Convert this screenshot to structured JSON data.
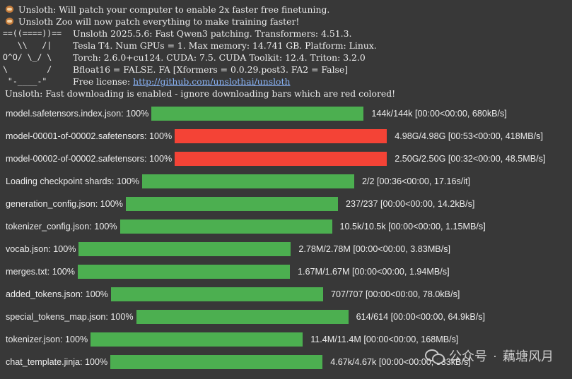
{
  "header": {
    "line1": "Unsloth: Will patch your computer to enable 2x faster free finetuning.",
    "line2": "Unsloth Zoo will now patch everything to make training faster!",
    "info1": "Unsloth 2025.5.6: Fast Qwen3 patching. Transformers: 4.51.3.",
    "info2": "Tesla T4. Num GPUs = 1. Max memory: 14.741 GB. Platform: Linux.",
    "info3": "Torch: 2.6.0+cu124. CUDA: 7.5. CUDA Toolkit: 12.4. Triton: 3.2.0",
    "info4": "Bfloat16 = FALSE. FA [Xformers = 0.0.29.post3. FA2 = False]",
    "license_label": "Free license: ",
    "license_url": "http://github.com/unslothai/unsloth",
    "fast_download": "Unsloth: Fast downloading is enabled - ignore downloading bars which are red colored!"
  },
  "ascii_art": {
    "row1": "==((====))==",
    "row2": "   \\\\   /|",
    "row3": "O^O/ \\_/ \\",
    "row4": "\\        /",
    "row5": " \"-____-\""
  },
  "colors": {
    "green": "#4caf50",
    "red": "#f44336",
    "track": "#555555"
  },
  "progress_bars": [
    {
      "label": "model.safetensors.index.json: 100%",
      "stats": "144k/144k  [00:00<00:00,  680kB/s]",
      "status": "green",
      "progress": 1.0
    },
    {
      "label": "model-00001-of-00002.safetensors: 100%",
      "stats": "4.98G/4.98G  [00:53<00:00,  418MB/s]",
      "status": "red",
      "progress": 1.0
    },
    {
      "label": "model-00002-of-00002.safetensors: 100%",
      "stats": "2.50G/2.50G  [00:32<00:00,  48.5MB/s]",
      "status": "red",
      "progress": 1.0
    },
    {
      "label": "Loading  checkpoint  shards: 100%",
      "stats": "2/2  [00:36<00:00,  17.16s/it]",
      "status": "green",
      "progress": 1.0
    },
    {
      "label": "generation_config.json: 100%",
      "stats": "237/237  [00:00<00:00,  14.2kB/s]",
      "status": "green",
      "progress": 1.0
    },
    {
      "label": "tokenizer_config.json: 100%",
      "stats": "10.5k/10.5k  [00:00<00:00,  1.15MB/s]",
      "status": "green",
      "progress": 1.0
    },
    {
      "label": "vocab.json: 100%",
      "stats": "2.78M/2.78M  [00:00<00:00,  3.83MB/s]",
      "status": "green",
      "progress": 1.0
    },
    {
      "label": "merges.txt: 100%",
      "stats": "1.67M/1.67M  [00:00<00:00,  1.94MB/s]",
      "status": "green",
      "progress": 1.0
    },
    {
      "label": "added_tokens.json: 100%",
      "stats": "707/707  [00:00<00:00,  78.0kB/s]",
      "status": "green",
      "progress": 1.0
    },
    {
      "label": "special_tokens_map.json: 100%",
      "stats": "614/614  [00:00<00:00,  64.9kB/s]",
      "status": "green",
      "progress": 1.0
    },
    {
      "label": "tokenizer.json: 100%",
      "stats": "11.4M/11.4M  [00:00<00:00,  168MB/s]",
      "status": "green",
      "progress": 1.0
    },
    {
      "label": "chat_template.jinja: 100%",
      "stats": "4.67k/4.67k  [00:00<00:00,  533kB/s]",
      "status": "green",
      "progress": 1.0
    }
  ],
  "watermark": {
    "channel": "公众号",
    "author": "藕塘风月",
    "sep": "·"
  }
}
